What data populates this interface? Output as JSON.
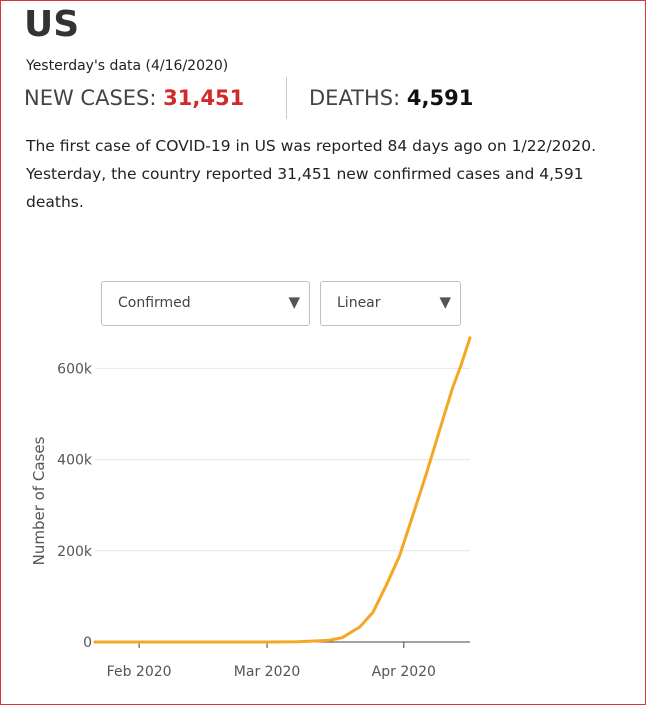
{
  "header": {
    "country": "US",
    "subtitle": "Yesterday's data (4/16/2020)",
    "new_cases_label": "NEW CASES:",
    "new_cases_value": "31,451",
    "deaths_label": "DEATHS:",
    "deaths_value": "4,591"
  },
  "description": {
    "part1": "The first case of ",
    "topic": "COVID-19",
    "part2": " in US was reported 84 days ago on 1/22/2020. Yesterday, the country reported 31,451 new confirmed cases and 4,591 deaths."
  },
  "controls": {
    "metric_select": {
      "value": "Confirmed",
      "caret": "▼"
    },
    "scale_select": {
      "value": "Linear",
      "caret": "▼"
    }
  },
  "colors": {
    "line": "#f5a623",
    "grid": "#e6e6e6",
    "new_cases": "#d12a2a",
    "border": "#d33333"
  },
  "chart_data": {
    "type": "line",
    "title": "",
    "xlabel": "",
    "ylabel": "Number of Cases",
    "x_ticks": [
      "Feb 2020",
      "Mar 2020",
      "Apr 2020"
    ],
    "y_ticks": [
      "0",
      "200k",
      "400k",
      "600k"
    ],
    "ylim": [
      0,
      660000
    ],
    "xlim": [
      "2020-01-22",
      "2020-04-16"
    ],
    "grid": true,
    "series": [
      {
        "name": "Confirmed",
        "x": [
          "2020-01-22",
          "2020-02-01",
          "2020-02-15",
          "2020-03-01",
          "2020-03-08",
          "2020-03-15",
          "2020-03-18",
          "2020-03-22",
          "2020-03-25",
          "2020-03-28",
          "2020-03-31",
          "2020-04-03",
          "2020-04-06",
          "2020-04-09",
          "2020-04-12",
          "2020-04-14",
          "2020-04-16"
        ],
        "y": [
          1,
          8,
          15,
          75,
          540,
          3500,
          9400,
          33000,
          65000,
          124000,
          188000,
          276000,
          366000,
          461000,
          556000,
          608000,
          667000
        ]
      }
    ]
  }
}
